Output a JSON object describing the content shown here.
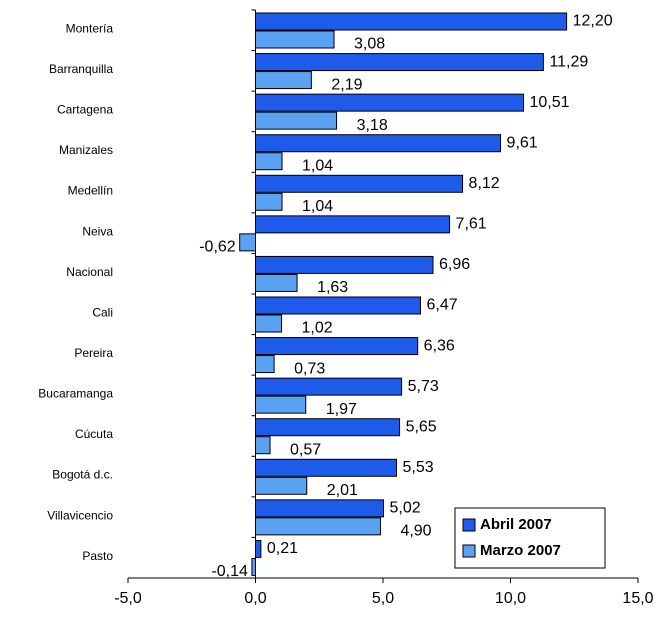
{
  "chart_data": {
    "type": "barh",
    "categories": [
      "Montería",
      "Barranquilla",
      "Cartagena",
      "Manizales",
      "Medellín",
      "Neiva",
      "Nacional",
      "Cali",
      "Pereira",
      "Bucaramanga",
      "Cúcuta",
      "Bogotá d.c.",
      "Villavicencio",
      "Pasto"
    ],
    "series": [
      {
        "name": "Abril 2007",
        "color": "#1f5bea",
        "values": [
          12.2,
          11.29,
          10.51,
          9.61,
          8.12,
          7.61,
          6.96,
          6.47,
          6.36,
          5.73,
          5.65,
          5.53,
          5.02,
          0.21
        ],
        "value_labels": [
          "12,20",
          "11,29",
          "10,51",
          "9,61",
          "8,12",
          "7,61",
          "6,96",
          "6,47",
          "6,36",
          "5,73",
          "5,65",
          "5,53",
          "5,02",
          "0,21"
        ]
      },
      {
        "name": "Marzo 2007",
        "color": "#5ba3f2",
        "values": [
          3.08,
          2.19,
          3.18,
          1.04,
          1.04,
          -0.62,
          1.63,
          1.02,
          0.73,
          1.97,
          0.57,
          2.01,
          4.9,
          -0.14
        ],
        "value_labels": [
          "3,08",
          "2,19",
          "3,18",
          "1,04",
          "1,04",
          "-0,62",
          "1,63",
          "1,02",
          "0,73",
          "1,97",
          "0,57",
          "2,01",
          "4,90",
          "-0,14"
        ]
      }
    ],
    "xlim": [
      -5,
      15
    ],
    "xticks": [
      {
        "value": -5,
        "label": "-5,0"
      },
      {
        "value": 0,
        "label": "0,0"
      },
      {
        "value": 5,
        "label": "5,0"
      },
      {
        "value": 10,
        "label": "10,0"
      },
      {
        "value": 15,
        "label": "15,0"
      }
    ],
    "legend": "lower right"
  }
}
